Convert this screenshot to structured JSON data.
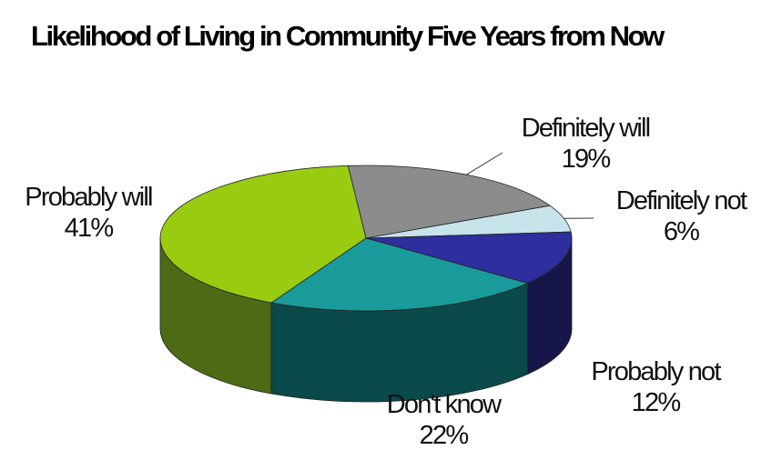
{
  "chart_data": {
    "type": "pie",
    "title": "Likelihood of Living in Community Five Years from Now",
    "slices": [
      {
        "label": "Definitely will",
        "value": 19,
        "value_label": "19%",
        "color": "#8c8c8c",
        "side_color": "#5e5e5e"
      },
      {
        "label": "Definitely not",
        "value": 6,
        "value_label": "6%",
        "color": "#c6e4ea",
        "side_color": "#8fb3ba"
      },
      {
        "label": "Probably not",
        "value": 12,
        "value_label": "12%",
        "color": "#2e2e9e",
        "side_color": "#16164a"
      },
      {
        "label": "Don't know",
        "value": 22,
        "value_label": "22%",
        "color": "#1a9b9b",
        "side_color": "#0b4a4a"
      },
      {
        "label": "Probably will",
        "value": 41,
        "value_label": "41%",
        "color": "#99cc11",
        "side_color": "#4d6a14"
      }
    ],
    "legend": "none",
    "style": "3d"
  }
}
